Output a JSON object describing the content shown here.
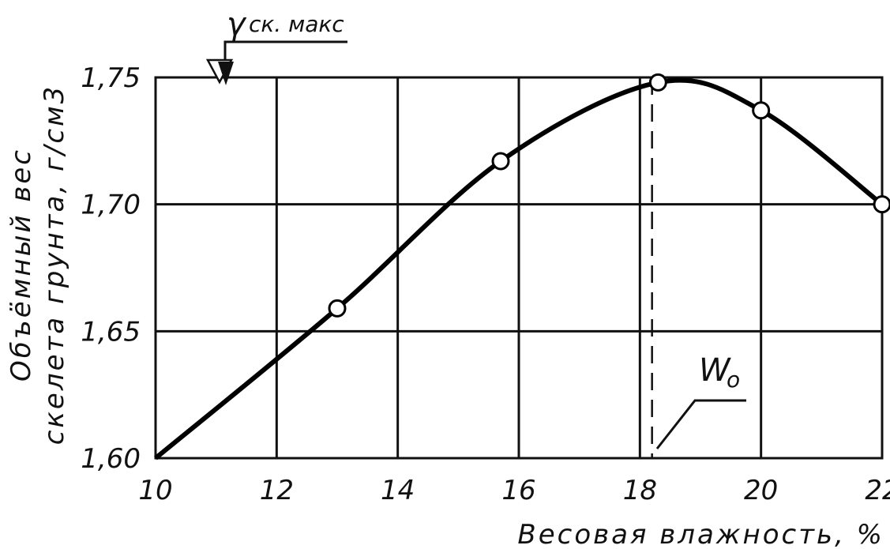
{
  "chart_data": {
    "type": "line",
    "xlabel": "Весовая влажность, %",
    "ylabel_line1": "Объёмный вес",
    "ylabel_line2": "скелета грунта, г/см3",
    "xlim": [
      10,
      22
    ],
    "ylim": [
      1.6,
      1.75
    ],
    "x_ticks": [
      10,
      12,
      14,
      16,
      18,
      20,
      22
    ],
    "y_ticks": [
      1.6,
      1.65,
      1.7,
      1.75
    ],
    "x_tick_labels": [
      "10",
      "12",
      "14",
      "16",
      "18",
      "20",
      "22"
    ],
    "y_tick_labels": [
      "1,60",
      "1,65",
      "1,70",
      "1,75"
    ],
    "grid": true,
    "series": [
      {
        "points": [
          {
            "x": 10.0,
            "y": 1.6
          },
          {
            "x": 13.0,
            "y": 1.659
          },
          {
            "x": 15.7,
            "y": 1.717
          },
          {
            "x": 18.3,
            "y": 1.748
          },
          {
            "x": 20.0,
            "y": 1.737
          },
          {
            "x": 22.0,
            "y": 1.7
          }
        ],
        "markers": [
          {
            "x": 13.0,
            "y": 1.659
          },
          {
            "x": 15.7,
            "y": 1.717
          },
          {
            "x": 18.3,
            "y": 1.748
          },
          {
            "x": 20.0,
            "y": 1.737
          },
          {
            "x": 22.0,
            "y": 1.7
          }
        ]
      }
    ],
    "annotations": {
      "max_density_label_symbol": "γ",
      "max_density_label_sub": "ск. макс",
      "max_density_value": 1.75,
      "optimum_moisture_label": "W",
      "optimum_moisture_sub": "o",
      "optimum_moisture_value": 18.2
    }
  }
}
